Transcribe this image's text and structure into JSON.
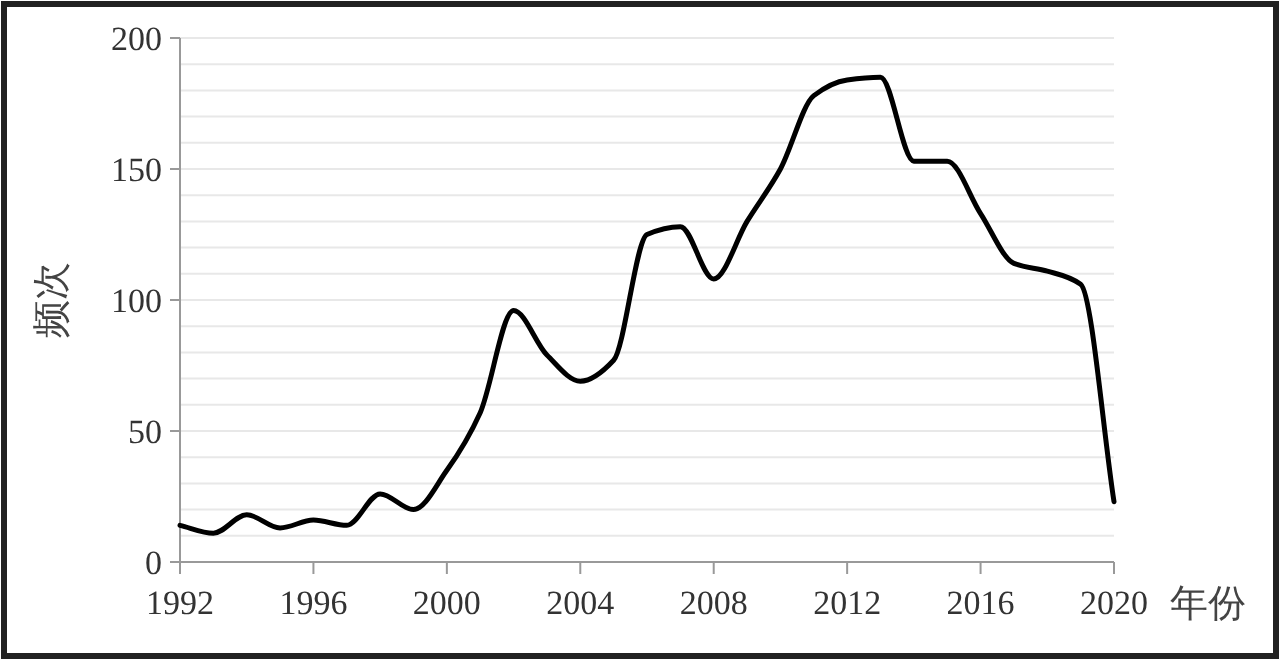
{
  "chart_data": {
    "type": "line",
    "xlabel": "年份",
    "ylabel": "频次",
    "x": [
      1992,
      1993,
      1994,
      1995,
      1996,
      1997,
      1998,
      1999,
      2000,
      2001,
      2002,
      2003,
      2004,
      2005,
      2006,
      2007,
      2008,
      2009,
      2010,
      2011,
      2012,
      2013,
      2014,
      2015,
      2016,
      2017,
      2018,
      2019,
      2020
    ],
    "series": [
      {
        "color": "#000000",
        "values": [
          14,
          11,
          18,
          13,
          16,
          14,
          26,
          20,
          35,
          57,
          96,
          79,
          69,
          77,
          125,
          128,
          108,
          130,
          150,
          178,
          184,
          185,
          153,
          153,
          133,
          114,
          111,
          106,
          23
        ]
      }
    ],
    "xlim": [
      1992,
      2020
    ],
    "xticks": [
      1992,
      1996,
      2000,
      2004,
      2008,
      2012,
      2016,
      2020
    ],
    "ylim": [
      0,
      200
    ],
    "yticks": [
      0,
      {
        "value": 10,
        "label": null
      },
      {
        "value": 20,
        "label": null
      },
      {
        "value": 30,
        "label": null
      },
      {
        "value": 40,
        "label": null
      },
      50,
      {
        "value": 60,
        "label": null
      },
      {
        "value": 70,
        "label": null
      },
      {
        "value": 80,
        "label": null
      },
      {
        "value": 90,
        "label": null
      },
      100,
      {
        "value": 110,
        "label": null
      },
      {
        "value": 120,
        "label": null
      },
      {
        "value": 130,
        "label": null
      },
      {
        "value": 140,
        "label": null
      },
      150,
      {
        "value": 160,
        "label": null
      },
      {
        "value": 170,
        "label": null
      },
      {
        "value": 180,
        "label": null
      },
      {
        "value": 190,
        "label": null
      },
      200
    ],
    "grid": "y",
    "marker": "none",
    "line_style": "solid"
  }
}
